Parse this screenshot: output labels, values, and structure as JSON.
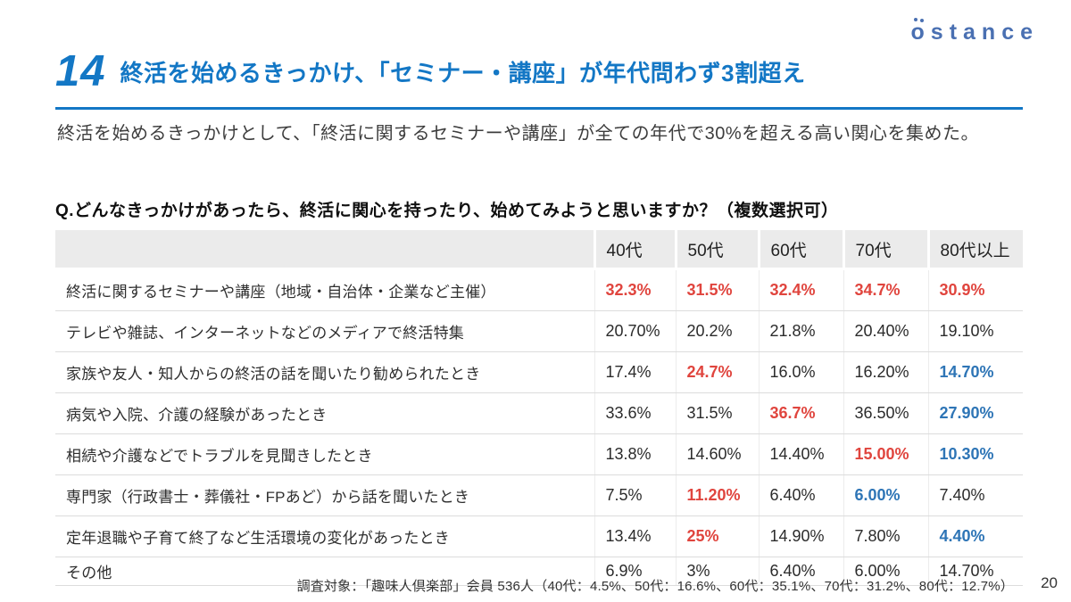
{
  "logo": {
    "text": "ostance"
  },
  "header": {
    "number": "14",
    "title": "終活を始めるきっかけ、「セミナー・講座」が年代問わず3割超え",
    "description": "終活を始めるきっかけとして、「終活に関するセミナーや講座」が全ての年代で30%を超える高い関心を集めた。"
  },
  "question": "Q.どんなきっかけがあったら、終活に関心を持ったり、始めてみようと思いますか？（複数選択可）",
  "table": {
    "headers": [
      "",
      "40代",
      "50代",
      "60代",
      "70代",
      "80代以上"
    ],
    "rows": [
      {
        "label": "終活に関するセミナーや講座（地域・自治体・企業など主催）",
        "values": [
          "32.3%",
          "31.5%",
          "32.4%",
          "34.7%",
          "30.9%"
        ],
        "styles": [
          "red",
          "red",
          "red",
          "red",
          "red"
        ]
      },
      {
        "label": "テレビや雑誌、インターネットなどのメディアで終活特集",
        "values": [
          "20.70%",
          "20.2%",
          "21.8%",
          "20.40%",
          "19.10%"
        ],
        "styles": [
          "",
          "",
          "",
          "",
          ""
        ]
      },
      {
        "label": "家族や友人・知人からの終活の話を聞いたり勧められたとき",
        "values": [
          "17.4%",
          "24.7%",
          "16.0%",
          "16.20%",
          "14.70%"
        ],
        "styles": [
          "",
          "red",
          "",
          "",
          "blue"
        ]
      },
      {
        "label": "病気や入院、介護の経験があったとき",
        "values": [
          "33.6%",
          "31.5%",
          "36.7%",
          "36.50%",
          "27.90%"
        ],
        "styles": [
          "",
          "",
          "red",
          "",
          "blue"
        ]
      },
      {
        "label": "相続や介護などでトラブルを見聞きしたとき",
        "values": [
          "13.8%",
          "14.60%",
          "14.40%",
          "15.00%",
          "10.30%"
        ],
        "styles": [
          "",
          "",
          "",
          "red",
          "blue"
        ]
      },
      {
        "label": "専門家（行政書士・葬儀社・FPあど）から話を聞いたとき",
        "values": [
          "7.5%",
          "11.20%",
          "6.40%",
          "6.00%",
          "7.40%"
        ],
        "styles": [
          "",
          "red",
          "",
          "blue",
          ""
        ]
      },
      {
        "label": "定年退職や子育て終了など生活環境の変化があったとき",
        "values": [
          "13.4%",
          "25%",
          "14.90%",
          "7.80%",
          "4.40%"
        ],
        "styles": [
          "",
          "red",
          "",
          "",
          "blue"
        ]
      },
      {
        "label": "その他",
        "values": [
          "6.9%",
          "3%",
          "6.40%",
          "6.00%",
          "14.70%"
        ],
        "styles": [
          "",
          "",
          "",
          "",
          ""
        ]
      }
    ]
  },
  "footer": {
    "note": "調査対象：「趣味人倶楽部」会員 536人（40代：4.5%、50代：16.6%、60代：35.1%、70代：31.2%、80代：12.7%）",
    "page": "20"
  },
  "colors": {
    "accent_blue": "#1377c5",
    "logo_blue": "#4a70b2",
    "value_red": "#e0453e",
    "value_blue": "#2e75b6",
    "header_bg": "#ebebeb"
  }
}
